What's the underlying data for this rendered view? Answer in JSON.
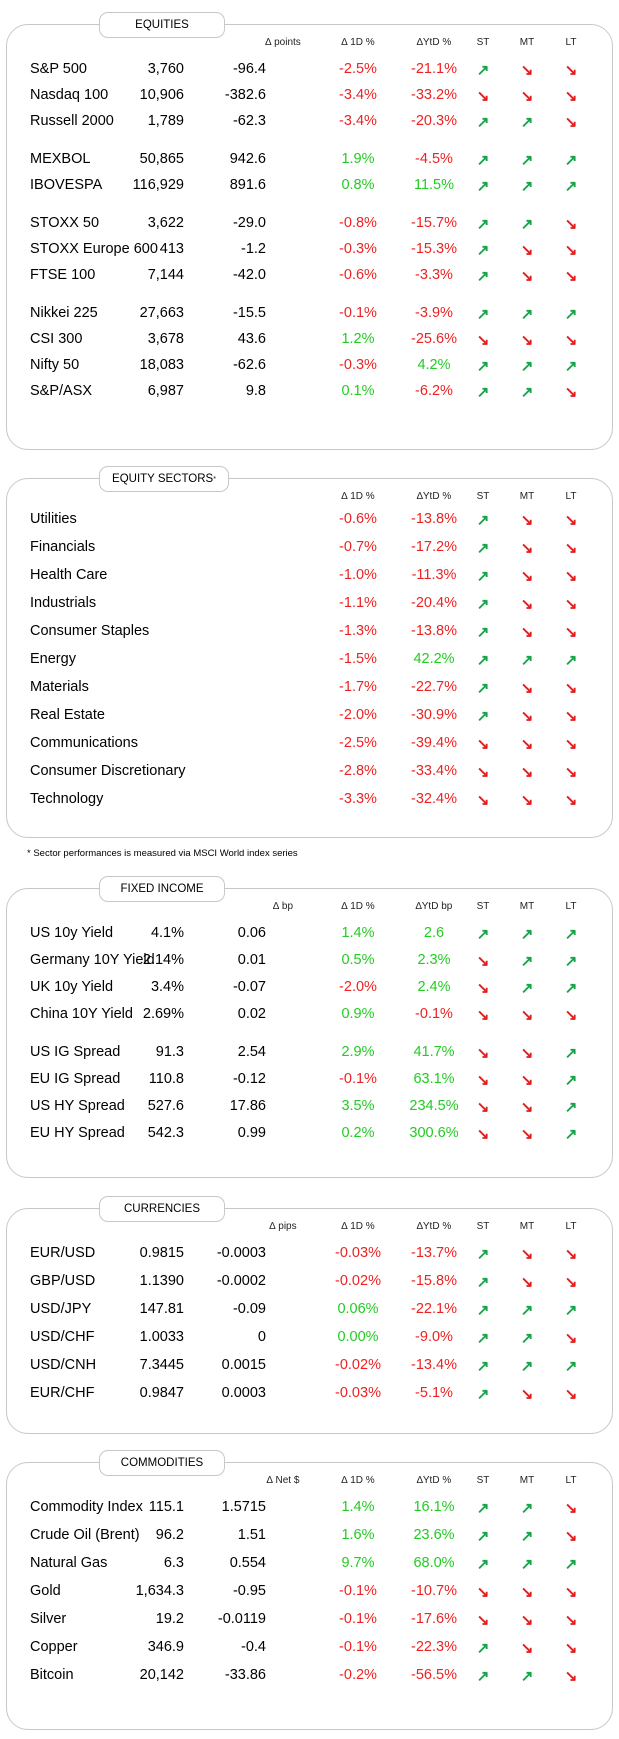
{
  "equities": {
    "title": "EQUITIES",
    "headers": [
      "∆ points",
      "∆ 1D %",
      "∆YtD %",
      "ST",
      "MT",
      "LT"
    ],
    "rows": [
      [
        "S&P 500",
        "3,760",
        "-96.4",
        "-2.5%",
        "-21.1%",
        "up",
        "dn",
        "dn"
      ],
      [
        "Nasdaq 100",
        "10,906",
        "-382.6",
        "-3.4%",
        "-33.2%",
        "dn",
        "dn",
        "dn"
      ],
      [
        "Russell 2000",
        "1,789",
        "-62.3",
        "-3.4%",
        "-20.3%",
        "up",
        "up",
        "dn"
      ],
      [
        "MEXBOL",
        "50,865",
        "942.6",
        "1.9%",
        "-4.5%",
        "up",
        "up",
        "up"
      ],
      [
        "IBOVESPA",
        "116,929",
        "891.6",
        "0.8%",
        "11.5%",
        "up",
        "up",
        "up"
      ],
      [
        "STOXX 50",
        "3,622",
        "-29.0",
        "-0.8%",
        "-15.7%",
        "up",
        "up",
        "dn"
      ],
      [
        "STOXX Europe 600",
        "413",
        "-1.2",
        "-0.3%",
        "-15.3%",
        "up",
        "dn",
        "dn"
      ],
      [
        "FTSE 100",
        "7,144",
        "-42.0",
        "-0.6%",
        "-3.3%",
        "up",
        "dn",
        "dn"
      ],
      [
        "Nikkei 225",
        "27,663",
        "-15.5",
        "-0.1%",
        "-3.9%",
        "up",
        "up",
        "up"
      ],
      [
        "CSI 300",
        "3,678",
        "43.6",
        "1.2%",
        "-25.6%",
        "dn",
        "dn",
        "dn"
      ],
      [
        "Nifty 50",
        "18,083",
        "-62.6",
        "-0.3%",
        "4.2%",
        "up",
        "up",
        "up"
      ],
      [
        "S&P/ASX",
        "6,987",
        "9.8",
        "0.1%",
        "-6.2%",
        "up",
        "up",
        "dn"
      ]
    ]
  },
  "sectors": {
    "title": "EQUITY SECTORS",
    "title_mark": "*",
    "headers": [
      "∆ 1D %",
      "∆YtD %",
      "ST",
      "MT",
      "LT"
    ],
    "rows": [
      [
        "Utilities",
        "-0.6%",
        "-13.8%",
        "up",
        "dn",
        "dn"
      ],
      [
        "Financials",
        "-0.7%",
        "-17.2%",
        "up",
        "dn",
        "dn"
      ],
      [
        "Health Care",
        "-1.0%",
        "-11.3%",
        "up",
        "dn",
        "dn"
      ],
      [
        "Industrials",
        "-1.1%",
        "-20.4%",
        "up",
        "dn",
        "dn"
      ],
      [
        "Consumer Staples",
        "-1.3%",
        "-13.8%",
        "up",
        "dn",
        "dn"
      ],
      [
        "Energy",
        "-1.5%",
        "42.2%",
        "up",
        "up",
        "up"
      ],
      [
        "Materials",
        "-1.7%",
        "-22.7%",
        "up",
        "dn",
        "dn"
      ],
      [
        "Real Estate",
        "-2.0%",
        "-30.9%",
        "up",
        "dn",
        "dn"
      ],
      [
        "Communications",
        "-2.5%",
        "-39.4%",
        "dn",
        "dn",
        "dn"
      ],
      [
        "Consumer Discretionary",
        "-2.8%",
        "-33.4%",
        "dn",
        "dn",
        "dn"
      ],
      [
        "Technology",
        "-3.3%",
        "-32.4%",
        "dn",
        "dn",
        "dn"
      ]
    ],
    "footnote": "* Sector performances is measured via MSCI World index series"
  },
  "fixed_income": {
    "title": "FIXED INCOME",
    "headers": [
      "∆ bp",
      "∆ 1D %",
      "∆YtD bp",
      "ST",
      "MT",
      "LT"
    ],
    "rows": [
      [
        "US 10y Yield",
        "4.1%",
        "0.06",
        "1.4%",
        "2.6",
        "up",
        "up",
        "up"
      ],
      [
        "Germany 10Y Yield",
        "2.14%",
        "0.01",
        "0.5%",
        "2.3%",
        "dn",
        "up",
        "up"
      ],
      [
        "UK 10y Yield",
        "3.4%",
        "-0.07",
        "-2.0%",
        "2.4%",
        "dn",
        "up",
        "up"
      ],
      [
        "China 10Y Yield",
        "2.69%",
        "0.02",
        "0.9%",
        "-0.1%",
        "dn",
        "dn",
        "dn"
      ],
      [
        "US IG Spread",
        "91.3",
        "2.54",
        "2.9%",
        "41.7%",
        "dn",
        "dn",
        "up"
      ],
      [
        "EU IG Spread",
        "110.8",
        "-0.12",
        "-0.1%",
        "63.1%",
        "dn",
        "dn",
        "up"
      ],
      [
        "US HY Spread",
        "527.6",
        "17.86",
        "3.5%",
        "234.5%",
        "dn",
        "dn",
        "up"
      ],
      [
        "EU HY Spread",
        "542.3",
        "0.99",
        "0.2%",
        "300.6%",
        "dn",
        "dn",
        "up"
      ]
    ]
  },
  "currencies": {
    "title": "CURRENCIES",
    "headers": [
      "∆ pips",
      "∆ 1D %",
      "∆YtD %",
      "ST",
      "MT",
      "LT"
    ],
    "rows": [
      [
        "EUR/USD",
        "0.9815",
        "-0.0003",
        "-0.03%",
        "-13.7%",
        "up",
        "dn",
        "dn"
      ],
      [
        "GBP/USD",
        "1.1390",
        "-0.0002",
        "-0.02%",
        "-15.8%",
        "up",
        "dn",
        "dn"
      ],
      [
        "USD/JPY",
        "147.81",
        "-0.09",
        "0.06%",
        "-22.1%",
        "up",
        "up",
        "up"
      ],
      [
        "USD/CHF",
        "1.0033",
        "0",
        "0.00%",
        "-9.0%",
        "up",
        "up",
        "dn"
      ],
      [
        "USD/CNH",
        "7.3445",
        "0.0015",
        "-0.02%",
        "-13.4%",
        "up",
        "up",
        "up"
      ],
      [
        "EUR/CHF",
        "0.9847",
        "0.0003",
        "-0.03%",
        "-5.1%",
        "up",
        "dn",
        "dn"
      ]
    ]
  },
  "commodities": {
    "title": "COMMODITIES",
    "headers": [
      "∆ Net $",
      "∆ 1D %",
      "∆YtD %",
      "ST",
      "MT",
      "LT"
    ],
    "rows": [
      [
        "Commodity Index",
        "115.1",
        "1.5715",
        "1.4%",
        "16.1%",
        "up",
        "up",
        "dn"
      ],
      [
        "Crude Oil (Brent)",
        "96.2",
        "1.51",
        "1.6%",
        "23.6%",
        "up",
        "up",
        "dn"
      ],
      [
        "Natural Gas",
        "6.3",
        "0.554",
        "9.7%",
        "68.0%",
        "up",
        "up",
        "up"
      ],
      [
        "Gold",
        "1,634.3",
        "-0.95",
        "-0.1%",
        "-10.7%",
        "dn",
        "dn",
        "dn"
      ],
      [
        "Silver",
        "19.2",
        "-0.0119",
        "-0.1%",
        "-17.6%",
        "dn",
        "dn",
        "dn"
      ],
      [
        "Copper",
        "346.9",
        "-0.4",
        "-0.1%",
        "-22.3%",
        "up",
        "dn",
        "dn"
      ],
      [
        "Bitcoin",
        "20,142",
        "-33.86",
        "-0.2%",
        "-56.5%",
        "up",
        "up",
        "dn"
      ]
    ]
  },
  "colors": {
    "positive": "#22cc22",
    "negative": "#ee2222",
    "arrow_up": "#16a34a",
    "arrow_down": "#e11d1d",
    "border": "#c8c8c8"
  },
  "icons": {
    "up": "arrow-up-right-icon",
    "dn": "arrow-down-right-icon"
  }
}
